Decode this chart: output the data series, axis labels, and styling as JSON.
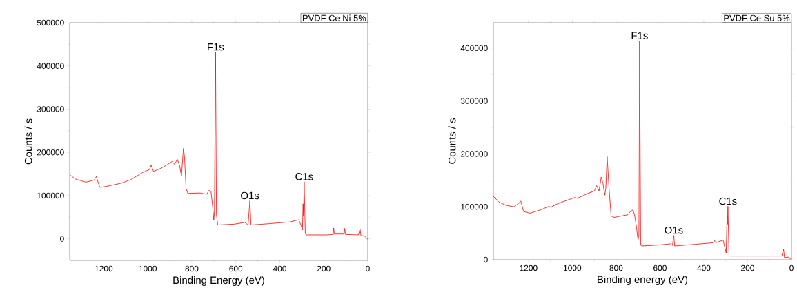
{
  "chart_data": [
    {
      "type": "line",
      "title": "PVDF Ce Ni 5%",
      "xlabel": "Binding Energy (eV)",
      "ylabel": "Counts / s",
      "x": [
        1355,
        1328,
        1281,
        1244,
        1234,
        1218,
        1181,
        1119,
        1077,
        1025,
        993,
        985,
        974,
        941,
        910,
        889,
        878,
        866,
        855,
        847,
        838,
        833,
        826,
        818,
        763,
        732,
        722,
        713,
        706,
        700,
        697,
        692,
        688,
        682,
        606,
        559,
        544,
        536,
        531,
        450,
        355,
        314,
        303,
        297,
        294,
        292,
        289,
        284,
        280,
        188,
        157,
        155,
        152,
        107,
        105,
        101,
        42,
        35,
        31,
        16,
        0
      ],
      "series": [
        {
          "color": "#ff0000",
          "values": [
            148000,
            138000,
            131000,
            136000,
            144000,
            119000,
            122000,
            129000,
            137000,
            153000,
            160000,
            170000,
            156000,
            163000,
            172000,
            179000,
            172000,
            184000,
            169000,
            145000,
            209000,
            190000,
            116000,
            105000,
            106000,
            103000,
            112000,
            110000,
            79000,
            44000,
            63000,
            432000,
            57000,
            32000,
            34000,
            38000,
            32000,
            88000,
            32000,
            35000,
            39000,
            44000,
            31000,
            20000,
            81000,
            52000,
            132000,
            12000,
            9000,
            9000,
            10000,
            25000,
            11000,
            11000,
            24000,
            10000,
            9000,
            23000,
            7000,
            7000,
            -1000
          ]
        }
      ],
      "annotations": [
        {
          "text": "F1s",
          "x": 692,
          "y": 432000
        },
        {
          "text": "O1s",
          "x": 536,
          "y": 88000
        },
        {
          "text": "C1s",
          "x": 289,
          "y": 132000
        }
      ],
      "xlim": [
        1355,
        0
      ],
      "xticks": [
        1200,
        1000,
        800,
        600,
        400,
        200,
        0
      ],
      "ylim": [
        -50000,
        500000
      ],
      "yticks": [
        0,
        100000,
        200000,
        300000,
        400000,
        500000
      ]
    },
    {
      "type": "line",
      "title": "PVDF Ce Su 5%",
      "xlabel": "Binding energy (eV)",
      "ylabel": "Counts / s",
      "x": [
        1360,
        1335,
        1303,
        1266,
        1246,
        1235,
        1222,
        1193,
        1146,
        1106,
        1099,
        1072,
        1020,
        986,
        978,
        925,
        899,
        889,
        878,
        868,
        860,
        852,
        847,
        841,
        833,
        823,
        810,
        747,
        735,
        724,
        716,
        707,
        700,
        696,
        693,
        688,
        684,
        600,
        553,
        543,
        537,
        533,
        443,
        359,
        351,
        346,
        312,
        298,
        294,
        292,
        290,
        285,
        281,
        180,
        44,
        36,
        32,
        15,
        0
      ],
      "series": [
        {
          "color": "#ff0000",
          "values": [
            120000,
            109000,
            103000,
            100000,
            106000,
            111000,
            91000,
            88000,
            94000,
            101000,
            99000,
            105000,
            113000,
            118000,
            116000,
            126000,
            130000,
            140000,
            130000,
            156000,
            144000,
            122000,
            135000,
            195000,
            139000,
            83000,
            80000,
            85000,
            91000,
            94000,
            85000,
            61000,
            37000,
            48000,
            414000,
            28000,
            26000,
            28000,
            30000,
            27000,
            46000,
            26000,
            29000,
            32000,
            36000,
            32000,
            37000,
            13000,
            80000,
            67000,
            101000,
            8000,
            7000,
            7000,
            7000,
            20000,
            4000,
            5000,
            0
          ]
        }
      ],
      "annotations": [
        {
          "text": "F1s",
          "x": 693,
          "y": 414000
        },
        {
          "text": "O1s",
          "x": 537,
          "y": 46000
        },
        {
          "text": "C1s",
          "x": 290,
          "y": 101000
        }
      ],
      "xlim": [
        1360,
        0
      ],
      "xticks": [
        1200,
        1000,
        800,
        600,
        400,
        200,
        0
      ],
      "ylim": [
        0,
        448000
      ],
      "yticks": [
        0,
        100000,
        200000,
        300000,
        400000
      ]
    }
  ]
}
